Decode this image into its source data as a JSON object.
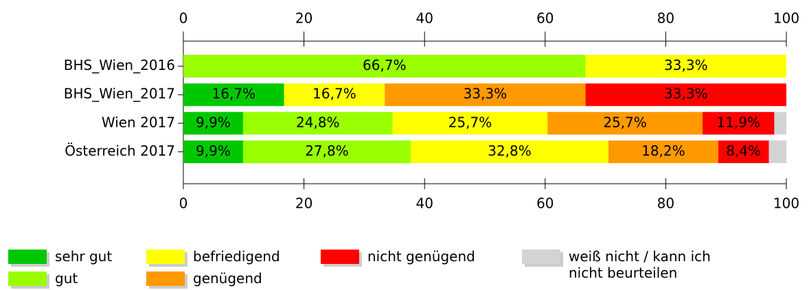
{
  "chart_data": {
    "type": "stacked_barh",
    "categories": [
      "BHS_Wien_2016",
      "BHS_Wien_2017",
      "Wien 2017",
      "Österreich 2017"
    ],
    "series": [
      {
        "name": "sehr gut",
        "color": "#00c800",
        "values": [
          0,
          16.7,
          9.9,
          9.9
        ],
        "value_labels": [
          null,
          "16,7%",
          "9,9%",
          "9,9%"
        ]
      },
      {
        "name": "gut",
        "color": "#99ff00",
        "values": [
          66.7,
          0,
          24.8,
          27.8
        ],
        "value_labels": [
          "66,7%",
          null,
          "24,8%",
          "27,8%"
        ]
      },
      {
        "name": "befriedigend",
        "color": "#ffff00",
        "values": [
          33.3,
          16.7,
          25.7,
          32.8
        ],
        "value_labels": [
          "33,3%",
          "16,7%",
          "25,7%",
          "32,8%"
        ]
      },
      {
        "name": "genügend",
        "color": "#ff9900",
        "values": [
          0,
          33.3,
          25.7,
          18.2
        ],
        "value_labels": [
          null,
          "33,3%",
          "25,7%",
          "18,2%"
        ]
      },
      {
        "name": "nicht genügend",
        "color": "#ff0000",
        "values": [
          0,
          33.3,
          11.9,
          8.4
        ],
        "value_labels": [
          null,
          "33,3%",
          "11,9%",
          "8,4%"
        ]
      },
      {
        "name": "weiß nicht / kann ich nicht beurteilen",
        "color": "#d3d3d3",
        "values": [
          0,
          0,
          2.0,
          2.9
        ],
        "value_labels": [
          null,
          null,
          null,
          null
        ]
      }
    ],
    "xlim": [
      0,
      100
    ],
    "xticks": [
      0,
      20,
      40,
      60,
      80,
      100
    ]
  }
}
